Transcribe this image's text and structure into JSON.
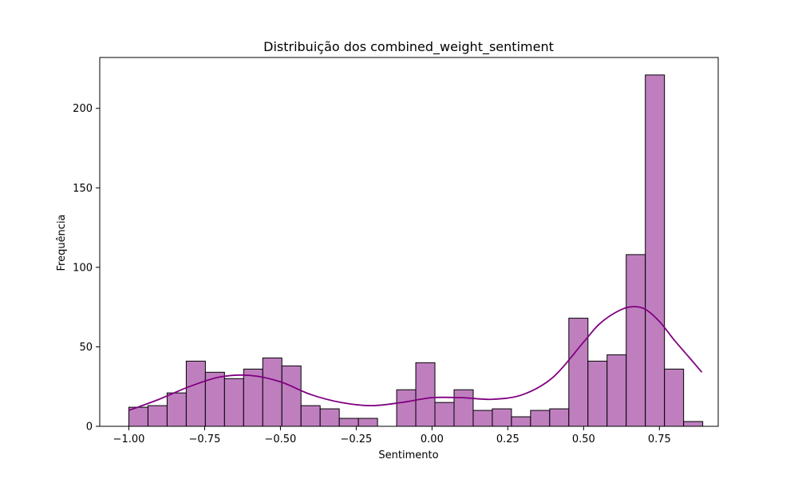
{
  "chart_data": {
    "type": "bar",
    "subtype": "histogram_with_kde",
    "title": "Distribuição dos combined_weight_sentiment",
    "xlabel": "Sentimento",
    "ylabel": "Frequência",
    "xlim": [
      -1.096,
      0.944
    ],
    "ylim": [
      0,
      232
    ],
    "xticks": [
      -1.0,
      -0.75,
      -0.5,
      -0.25,
      0.0,
      0.25,
      0.5,
      0.75
    ],
    "xtick_labels": [
      "−1.00",
      "−0.75",
      "−0.50",
      "−0.25",
      "0.00",
      "0.25",
      "0.50",
      "0.75"
    ],
    "yticks": [
      0,
      50,
      100,
      150,
      200
    ],
    "ytick_labels": [
      "0",
      "50",
      "100",
      "150",
      "200"
    ],
    "bin_start": -1.0,
    "bin_width": 0.0631,
    "bin_counts": [
      12,
      13,
      21,
      41,
      34,
      30,
      36,
      43,
      38,
      13,
      11,
      5,
      5,
      0,
      23,
      40,
      15,
      23,
      10,
      11,
      6,
      10,
      11,
      68,
      41,
      45,
      108,
      221,
      36,
      3
    ],
    "kde": {
      "x": [
        -1.0,
        -0.9,
        -0.8,
        -0.7,
        -0.6,
        -0.5,
        -0.4,
        -0.3,
        -0.2,
        -0.1,
        0.0,
        0.1,
        0.2,
        0.3,
        0.4,
        0.5,
        0.55,
        0.6,
        0.65,
        0.7,
        0.75,
        0.8,
        0.85,
        0.89
      ],
      "y": [
        10,
        17,
        25,
        31,
        32,
        28,
        20,
        15,
        13,
        15,
        18,
        18,
        17,
        20,
        31,
        53,
        64,
        71,
        75,
        74,
        66,
        54,
        43,
        34
      ]
    },
    "grid": false,
    "legend": false
  },
  "colors": {
    "bar_fill": "#bf7fbf",
    "bar_edge": "#000000",
    "kde_line": "#800080"
  }
}
